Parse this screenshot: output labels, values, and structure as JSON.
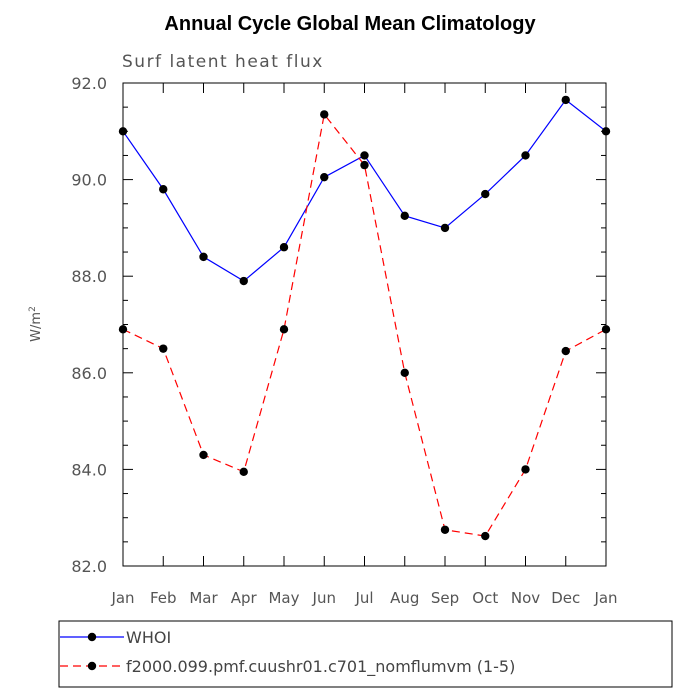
{
  "chart_data": {
    "type": "line",
    "title": "Annual Cycle Global Mean Climatology",
    "subtitle": "Surf latent heat flux",
    "ylabel": "W/m",
    "ylabel_superscript": "2",
    "xlabel": "",
    "categories": [
      "Jan",
      "Feb",
      "Mar",
      "Apr",
      "May",
      "Jun",
      "Jul",
      "Aug",
      "Sep",
      "Oct",
      "Nov",
      "Dec",
      "Jan"
    ],
    "ylim": [
      82.0,
      92.0
    ],
    "yticks": [
      "82.0",
      "84.0",
      "86.0",
      "88.0",
      "90.0",
      "92.0"
    ],
    "grid": false,
    "legend_position": "bottom",
    "series": [
      {
        "name": "WHOI",
        "color": "#0000ff",
        "dash": "solid",
        "values": [
          91.0,
          89.8,
          88.4,
          87.9,
          88.6,
          90.05,
          90.5,
          89.25,
          89.0,
          89.7,
          90.5,
          91.65,
          91.0
        ]
      },
      {
        "name": "f2000.099.pmf.cuushr01.c701_nomflumvm (1-5)",
        "color": "#ff0000",
        "dash": "dashed",
        "values": [
          86.9,
          86.5,
          84.3,
          83.95,
          86.9,
          91.35,
          90.3,
          86.0,
          82.75,
          82.62,
          84.0,
          86.45,
          86.9
        ]
      }
    ]
  }
}
